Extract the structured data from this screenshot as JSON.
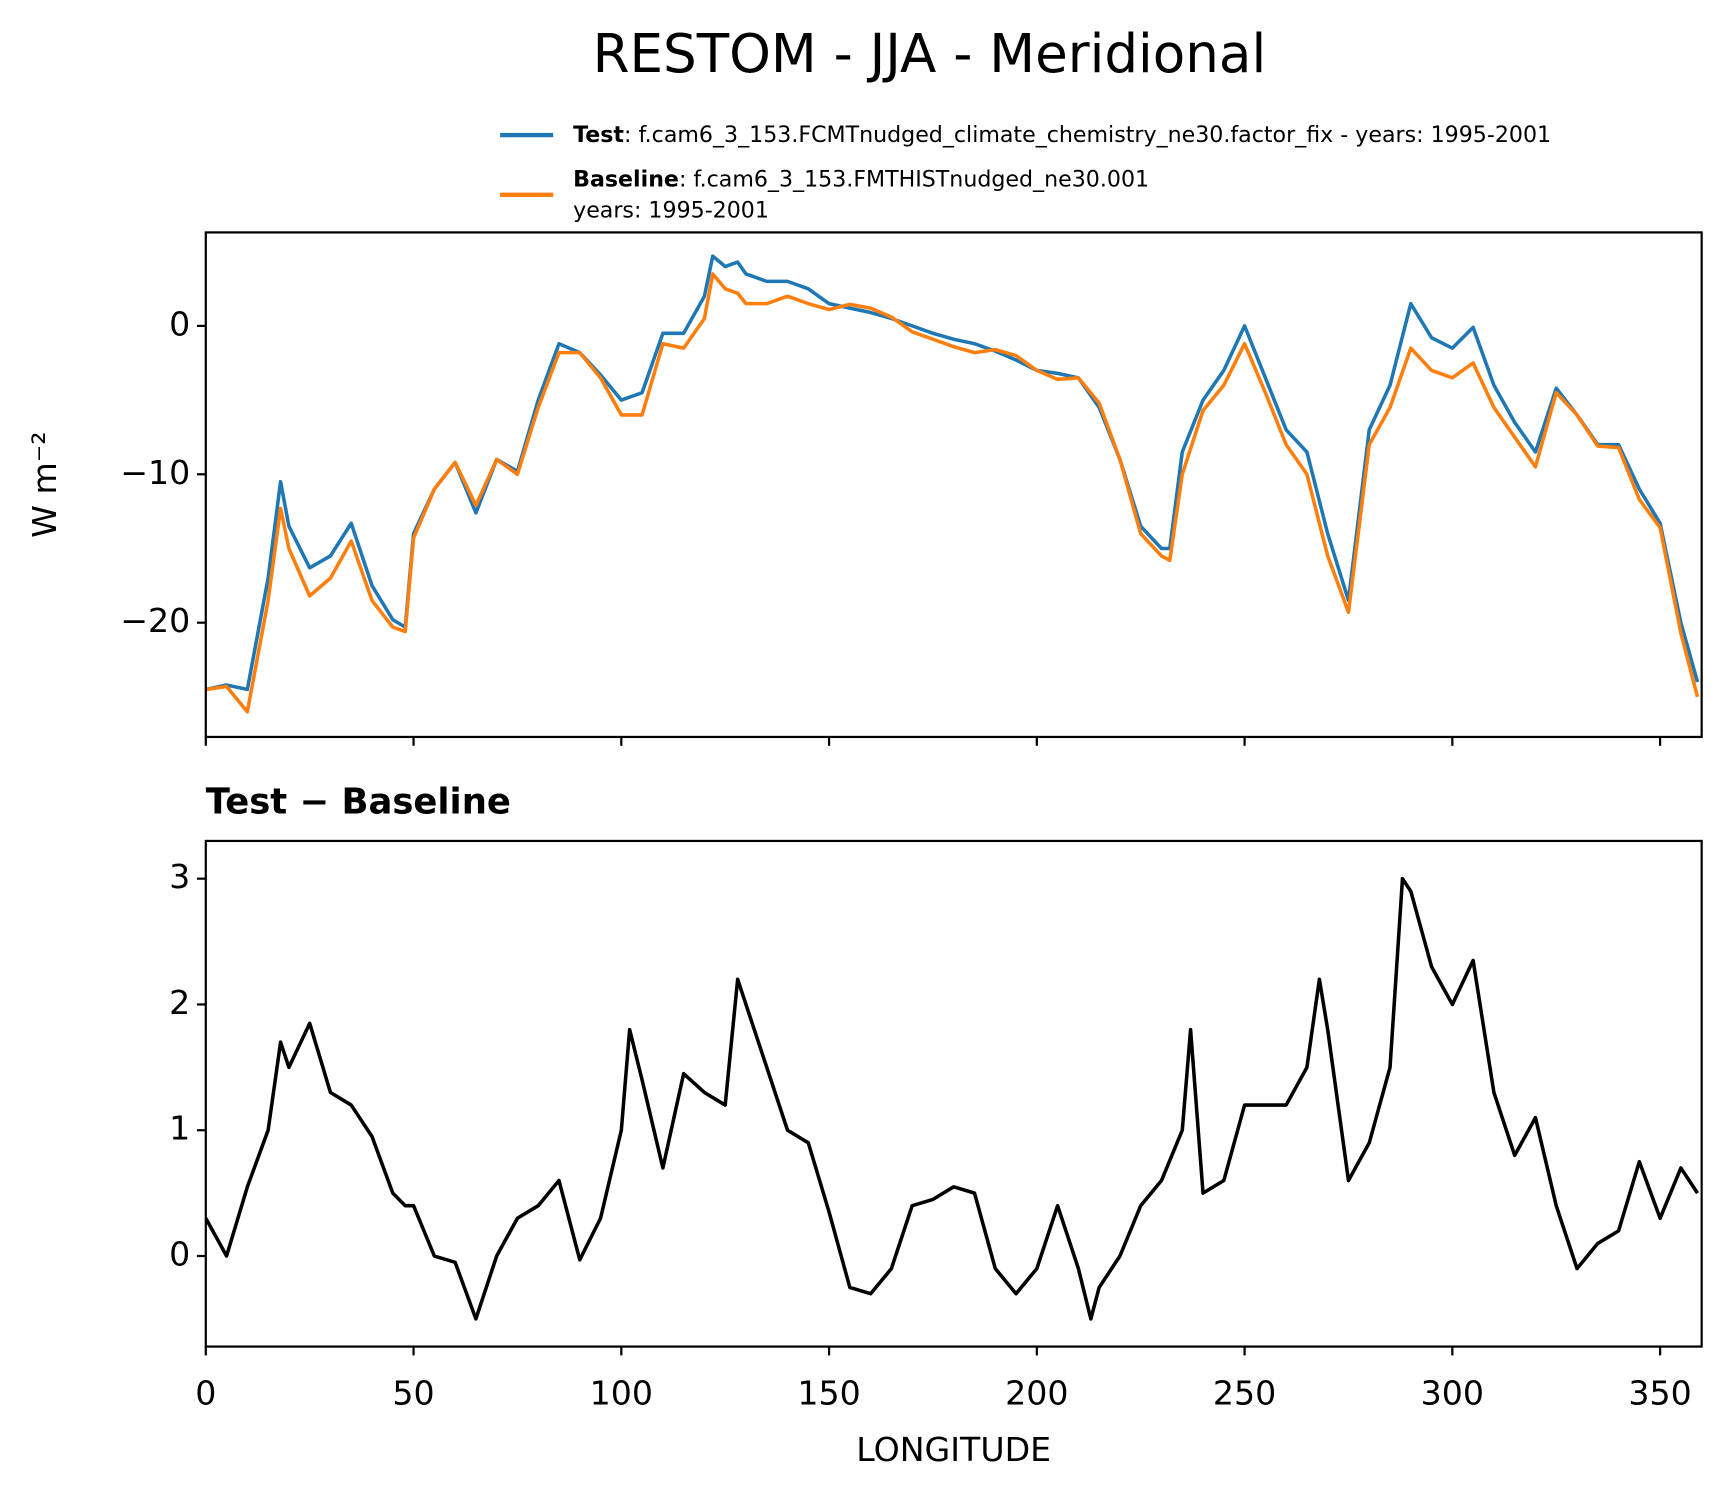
{
  "chart_data": [
    {
      "type": "line",
      "title": "RESTOM - JJA - Meridional",
      "ylabel": "W m⁻²",
      "xlim": [
        0,
        360
      ],
      "xticks": [
        0,
        50,
        100,
        150,
        200,
        250,
        300,
        350
      ],
      "ylim": [
        -27.7,
        6.3
      ],
      "yticks": [
        {
          "value": -20,
          "label": "−20"
        },
        {
          "value": -10,
          "label": "−10"
        },
        0
      ],
      "x": [
        0,
        5,
        10,
        15,
        18,
        20,
        25,
        30,
        35,
        40,
        45,
        48,
        50,
        55,
        60,
        65,
        70,
        75,
        80,
        85,
        90,
        95,
        100,
        105,
        110,
        115,
        120,
        122,
        125,
        128,
        130,
        135,
        140,
        145,
        150,
        155,
        160,
        165,
        170,
        175,
        180,
        185,
        190,
        195,
        200,
        205,
        210,
        215,
        220,
        225,
        230,
        232,
        235,
        240,
        245,
        250,
        255,
        260,
        265,
        270,
        275,
        280,
        285,
        290,
        295,
        300,
        305,
        310,
        315,
        320,
        325,
        330,
        335,
        340,
        345,
        350,
        355,
        359
      ],
      "series": [
        {
          "name": "Test",
          "description": ": f.cam6_3_153.FCMTnudged_climate_chemistry_ne30.factor_fix - years: 1995-2001",
          "color": "#1f77b4",
          "values": [
            -24.5,
            -24.2,
            -24.5,
            -17,
            -10.5,
            -13.5,
            -16.3,
            -15.5,
            -13.3,
            -17.5,
            -19.8,
            -20.3,
            -14,
            -11,
            -9.2,
            -12.6,
            -9,
            -9.8,
            -5,
            -1.2,
            -1.8,
            -3.3,
            -5,
            -4.5,
            -0.5,
            -0.5,
            2,
            4.7,
            4,
            4.3,
            3.5,
            3,
            3,
            2.5,
            1.5,
            1.2,
            0.9,
            0.5,
            0,
            -0.5,
            -0.9,
            -1.2,
            -1.7,
            -2.3,
            -3,
            -3.2,
            -3.5,
            -5.5,
            -9,
            -13.5,
            -15,
            -15,
            -8.5,
            -5,
            -3,
            0,
            -3.5,
            -7,
            -8.5,
            -14,
            -18.5,
            -7,
            -4,
            1.5,
            -0.8,
            -1.5,
            -0.1,
            -4,
            -6.5,
            -8.5,
            -4.2,
            -6,
            -8,
            -8,
            -11,
            -13.3,
            -20,
            -24
          ]
        },
        {
          "name": "Baseline",
          "description": [
            ": f.cam6_3_153.FMTHISTnudged_ne30.001",
            "years: 1995-2001"
          ],
          "color": "#ff7f0e",
          "values": [
            -24.5,
            -24.3,
            -26,
            -18.5,
            -12.3,
            -15,
            -18.2,
            -17,
            -14.5,
            -18.5,
            -20.3,
            -20.6,
            -14.3,
            -11,
            -9.2,
            -12.1,
            -9,
            -10,
            -5.5,
            -1.8,
            -1.8,
            -3.5,
            -6,
            -6,
            -1.2,
            -1.5,
            0.5,
            3.5,
            2.5,
            2.2,
            1.5,
            1.5,
            2,
            1.5,
            1.1,
            1.45,
            1.2,
            0.6,
            -0.4,
            -0.9,
            -1.4,
            -1.8,
            -1.6,
            -2,
            -3,
            -3.6,
            -3.5,
            -5.2,
            -9,
            -14,
            -15.5,
            -15.8,
            -10,
            -5.7,
            -4,
            -1.2,
            -4.5,
            -8,
            -10,
            -15.5,
            -19.3,
            -8,
            -5.5,
            -1.5,
            -3,
            -3.5,
            -2.5,
            -5.5,
            -7.5,
            -9.5,
            -4.5,
            -6,
            -8.1,
            -8.2,
            -11.7,
            -13.6,
            -20.7,
            -25
          ]
        }
      ]
    },
    {
      "type": "line",
      "title": "Test − Baseline",
      "xlabel": "LONGITUDE",
      "xlim": [
        0,
        360
      ],
      "xticks": [
        0,
        50,
        100,
        150,
        200,
        250,
        300,
        350
      ],
      "ylim": [
        -0.72,
        3.3
      ],
      "yticks": [
        0,
        1,
        2,
        3
      ],
      "x": [
        0,
        5,
        10,
        15,
        18,
        20,
        25,
        30,
        35,
        40,
        45,
        48,
        50,
        55,
        60,
        65,
        70,
        75,
        80,
        85,
        90,
        95,
        100,
        102,
        105,
        110,
        115,
        120,
        125,
        128,
        130,
        135,
        140,
        145,
        150,
        155,
        160,
        165,
        170,
        175,
        180,
        185,
        190,
        195,
        200,
        205,
        210,
        213,
        215,
        220,
        225,
        230,
        235,
        237,
        240,
        245,
        250,
        255,
        260,
        265,
        268,
        270,
        275,
        280,
        285,
        288,
        290,
        295,
        300,
        305,
        310,
        315,
        320,
        325,
        330,
        335,
        340,
        345,
        350,
        355,
        359
      ],
      "series": [
        {
          "name": "Test − Baseline",
          "color": "#000000",
          "values": [
            0.3,
            0,
            0.55,
            1.0,
            1.7,
            1.5,
            1.85,
            1.3,
            1.2,
            0.95,
            0.5,
            0.4,
            0.4,
            0,
            -0.05,
            -0.5,
            0,
            0.3,
            0.4,
            0.6,
            -0.03,
            0.3,
            1.0,
            1.8,
            1.4,
            0.7,
            1.45,
            1.3,
            1.2,
            2.2,
            2.0,
            1.5,
            1.0,
            0.9,
            0.35,
            -0.25,
            -0.3,
            -0.1,
            0.4,
            0.45,
            0.55,
            0.5,
            -0.1,
            -0.3,
            -0.1,
            0.4,
            -0.1,
            -0.5,
            -0.25,
            0,
            0.4,
            0.6,
            1.0,
            1.8,
            0.5,
            0.6,
            1.2,
            1.2,
            1.2,
            1.5,
            2.2,
            1.8,
            0.6,
            0.9,
            1.5,
            3.0,
            2.9,
            2.3,
            2.0,
            2.35,
            1.3,
            0.8,
            1.1,
            0.4,
            -0.1,
            0.1,
            0.2,
            0.75,
            0.3,
            0.7,
            0.5
          ]
        }
      ]
    }
  ]
}
